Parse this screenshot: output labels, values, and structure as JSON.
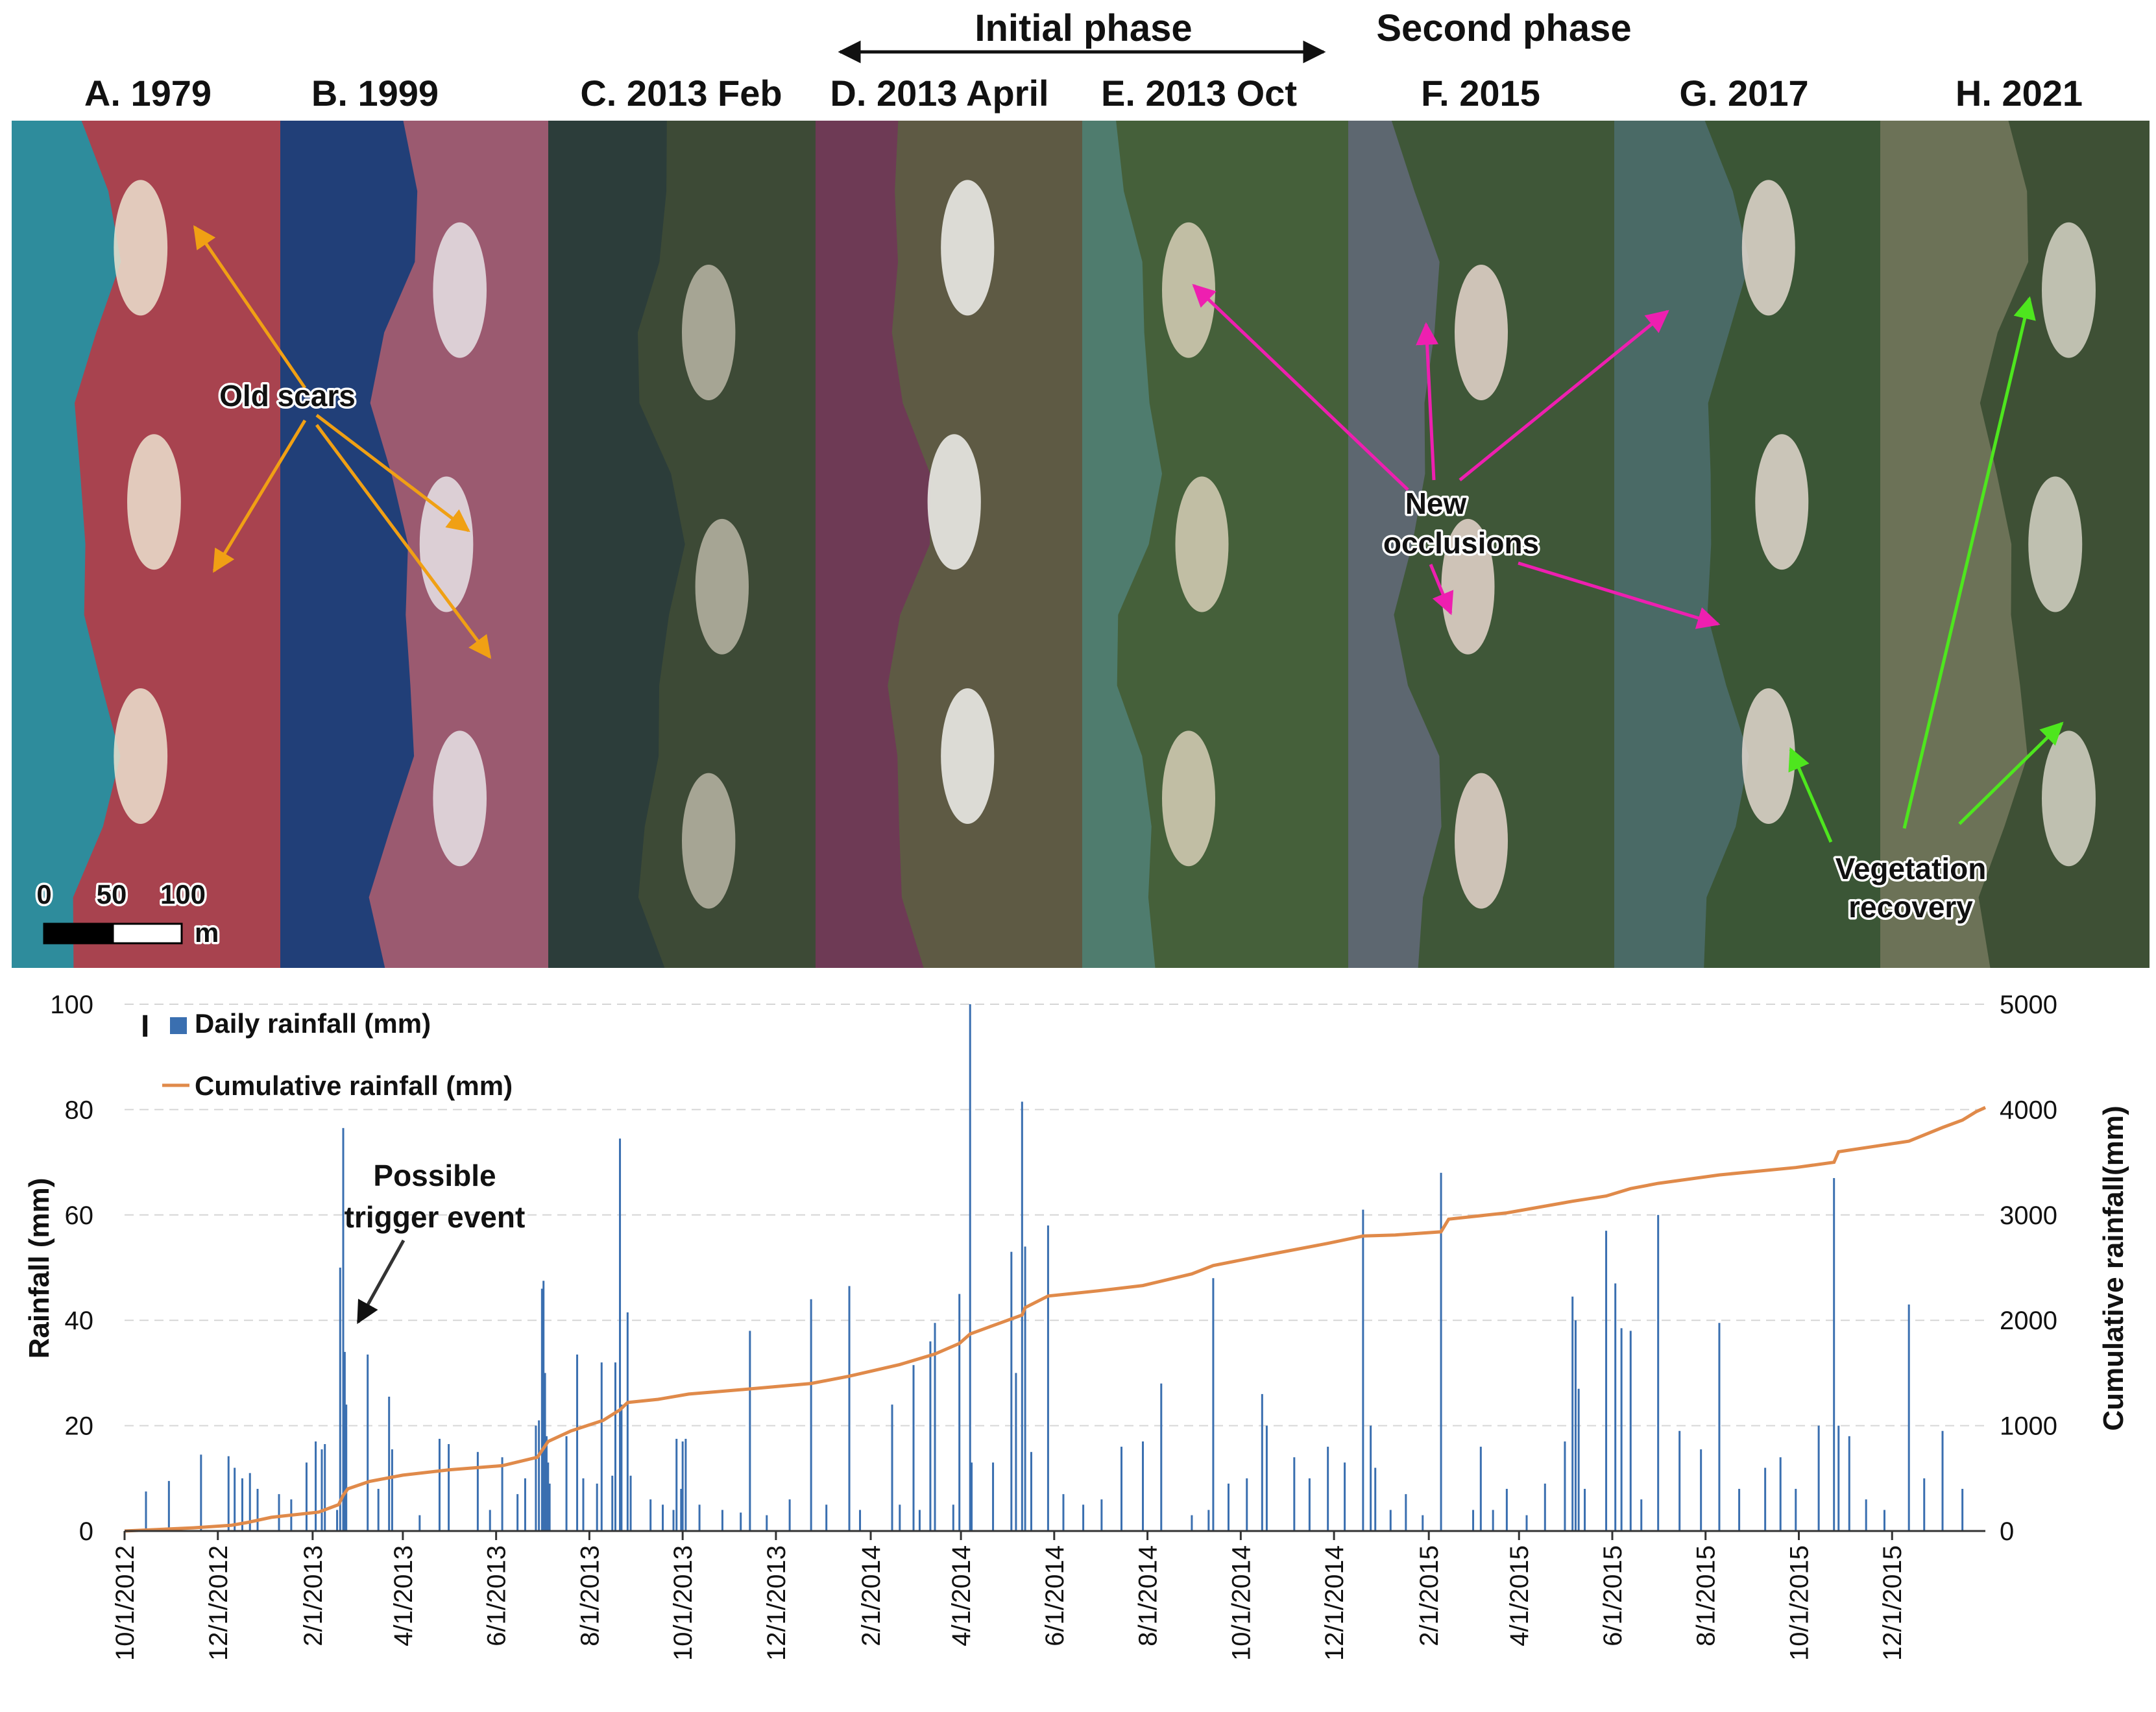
{
  "header": {
    "initial_phase": "Initial phase",
    "second_phase": "Second phase"
  },
  "panels": [
    {
      "label": "A. 1979",
      "water": "#2e8c9c",
      "land": "#a8434f",
      "scar": "#ece2cf"
    },
    {
      "label": "B. 1999",
      "water": "#213f78",
      "land": "#9b5a70",
      "scar": "#e8e4e6"
    },
    {
      "label": "C. 2013 Feb",
      "water": "#2c3d3a",
      "land": "#3d4a36",
      "scar": "#b9b5a4"
    },
    {
      "label": "D. 2013 April",
      "water": "#6e3a55",
      "land": "#5e5a44",
      "scar": "#f2f2ee"
    },
    {
      "label": "E. 2013 Oct",
      "water": "#4f7c6e",
      "land": "#45603a",
      "scar": "#d7cfb7"
    },
    {
      "label": "F. 2015",
      "water": "#5d6770",
      "land": "#3f5738",
      "scar": "#e7d6ce"
    },
    {
      "label": "G. 2017",
      "water": "#4a6a66",
      "land": "#3b5636",
      "scar": "#e4d8cf"
    },
    {
      "label": "H. 2021",
      "water": "#6c7257",
      "land": "#3e5035",
      "scar": "#d6d3c6"
    }
  ],
  "annotations": {
    "old_scars": "Old scars",
    "new_occlusions_1": "New",
    "new_occlusions_2": "occlusions",
    "vegetation_1": "Vegetation",
    "vegetation_2": "recovery",
    "trigger_1": "Possible",
    "trigger_2": "trigger event"
  },
  "scale_bar": {
    "ticks": [
      "0",
      "50",
      "100"
    ],
    "unit": "m"
  },
  "colors": {
    "old_scars_arrow": "#f0a014",
    "new_occlusions_arrow": "#ee1fb0",
    "vegetation_arrow": "#4ee61e",
    "daily_bar": "#3a6fb0",
    "cumulative_line": "#e08a4a",
    "phase_arrow": "#111111"
  },
  "chart_data": {
    "type": "bar",
    "panel_label": "I",
    "xlabel": "",
    "ylabel": "Rainfall (mm)",
    "ylabel_right": "Cumulative rainfall(mm)",
    "ylim": [
      0,
      100
    ],
    "ylim_right": [
      0,
      5000
    ],
    "yticks": [
      0,
      20,
      40,
      60,
      80,
      100
    ],
    "yticks_right": [
      0,
      1000,
      2000,
      3000,
      4000,
      5000
    ],
    "xlim": [
      "2012-10-01",
      "2016-01-31"
    ],
    "xticks": [
      "10/1/2012",
      "12/1/2012",
      "2/1/2013",
      "4/1/2013",
      "6/1/2013",
      "8/1/2013",
      "10/1/2013",
      "12/1/2013",
      "2/1/2014",
      "4/1/2014",
      "6/1/2014",
      "8/1/2014",
      "10/1/2014",
      "12/1/2014",
      "2/1/2015",
      "4/1/2015",
      "6/1/2015",
      "8/1/2015",
      "10/1/2015",
      "12/1/2015"
    ],
    "grid": true,
    "legend": "top-left",
    "series": [
      {
        "name": "Daily rainfall (mm)",
        "type": "bar",
        "points": [
          [
            "2012-10-15",
            7.5
          ],
          [
            "2012-10-30",
            9.5
          ],
          [
            "2012-11-20",
            14.5
          ],
          [
            "2012-12-08",
            14.2
          ],
          [
            "2012-12-12",
            12
          ],
          [
            "2012-12-17",
            10
          ],
          [
            "2012-12-22",
            11
          ],
          [
            "2012-12-27",
            8
          ],
          [
            "2013-01-10",
            7
          ],
          [
            "2013-01-18",
            6
          ],
          [
            "2013-01-28",
            13
          ],
          [
            "2013-02-03",
            17
          ],
          [
            "2013-02-07",
            15.5
          ],
          [
            "2013-02-09",
            16.5
          ],
          [
            "2013-02-17",
            4
          ],
          [
            "2013-02-19",
            50
          ],
          [
            "2013-02-21",
            76.5
          ],
          [
            "2013-02-22",
            34
          ],
          [
            "2013-02-23",
            24
          ],
          [
            "2013-03-09",
            33.5
          ],
          [
            "2013-03-16",
            8
          ],
          [
            "2013-03-23",
            25.5
          ],
          [
            "2013-03-25",
            15.5
          ],
          [
            "2013-04-12",
            3
          ],
          [
            "2013-04-25",
            17.5
          ],
          [
            "2013-05-01",
            16.5
          ],
          [
            "2013-05-20",
            15
          ],
          [
            "2013-05-28",
            4
          ],
          [
            "2013-06-05",
            14
          ],
          [
            "2013-06-15",
            7
          ],
          [
            "2013-06-20",
            10
          ],
          [
            "2013-06-27",
            20
          ],
          [
            "2013-06-29",
            21
          ],
          [
            "2013-07-01",
            46
          ],
          [
            "2013-07-02",
            47.5
          ],
          [
            "2013-07-03",
            30
          ],
          [
            "2013-07-04",
            18
          ],
          [
            "2013-07-05",
            13
          ],
          [
            "2013-07-06",
            9
          ],
          [
            "2013-07-17",
            18
          ],
          [
            "2013-07-24",
            33.5
          ],
          [
            "2013-07-28",
            10
          ],
          [
            "2013-08-06",
            9
          ],
          [
            "2013-08-09",
            32
          ],
          [
            "2013-08-16",
            10.5
          ],
          [
            "2013-08-18",
            32
          ],
          [
            "2013-08-21",
            74.5
          ],
          [
            "2013-08-22",
            24
          ],
          [
            "2013-08-26",
            41.5
          ],
          [
            "2013-08-28",
            10.5
          ],
          [
            "2013-09-10",
            6
          ],
          [
            "2013-09-18",
            5
          ],
          [
            "2013-09-25",
            4
          ],
          [
            "2013-09-27",
            17.5
          ],
          [
            "2013-09-30",
            8
          ],
          [
            "2013-10-01",
            17
          ],
          [
            "2013-10-03",
            17.5
          ],
          [
            "2013-10-12",
            5
          ],
          [
            "2013-10-27",
            4
          ],
          [
            "2013-11-08",
            3.5
          ],
          [
            "2013-11-14",
            38
          ],
          [
            "2013-11-25",
            3
          ],
          [
            "2013-12-10",
            6
          ],
          [
            "2013-12-24",
            44
          ],
          [
            "2014-01-03",
            5
          ],
          [
            "2014-01-18",
            46.5
          ],
          [
            "2014-01-25",
            4
          ],
          [
            "2014-02-15",
            24
          ],
          [
            "2014-02-20",
            5
          ],
          [
            "2014-03-01",
            31.5
          ],
          [
            "2014-03-05",
            4
          ],
          [
            "2014-03-12",
            36
          ],
          [
            "2014-03-15",
            39.5
          ],
          [
            "2014-03-27",
            5
          ],
          [
            "2014-03-31",
            45
          ],
          [
            "2014-04-07",
            100
          ],
          [
            "2014-04-08",
            13
          ],
          [
            "2014-04-22",
            13
          ],
          [
            "2014-05-04",
            53
          ],
          [
            "2014-05-07",
            30
          ],
          [
            "2014-05-11",
            81.5
          ],
          [
            "2014-05-13",
            54
          ],
          [
            "2014-05-17",
            15
          ],
          [
            "2014-05-28",
            58
          ],
          [
            "2014-06-07",
            7
          ],
          [
            "2014-06-20",
            5
          ],
          [
            "2014-07-02",
            6
          ],
          [
            "2014-07-15",
            16
          ],
          [
            "2014-07-29",
            17
          ],
          [
            "2014-08-10",
            28
          ],
          [
            "2014-08-30",
            3
          ],
          [
            "2014-09-10",
            4
          ],
          [
            "2014-09-13",
            48
          ],
          [
            "2014-09-23",
            9
          ],
          [
            "2014-10-05",
            10
          ],
          [
            "2014-10-15",
            26
          ],
          [
            "2014-10-18",
            20
          ],
          [
            "2014-11-05",
            14
          ],
          [
            "2014-11-15",
            10
          ],
          [
            "2014-11-27",
            16
          ],
          [
            "2014-12-08",
            13
          ],
          [
            "2014-12-20",
            61
          ],
          [
            "2014-12-25",
            20
          ],
          [
            "2014-12-28",
            12
          ],
          [
            "2015-01-07",
            4
          ],
          [
            "2015-01-17",
            7
          ],
          [
            "2015-01-28",
            3
          ],
          [
            "2015-02-09",
            68
          ],
          [
            "2015-03-02",
            4
          ],
          [
            "2015-03-07",
            16
          ],
          [
            "2015-03-15",
            4
          ],
          [
            "2015-03-24",
            8
          ],
          [
            "2015-04-06",
            3
          ],
          [
            "2015-04-18",
            9
          ],
          [
            "2015-05-01",
            17
          ],
          [
            "2015-05-06",
            44.5
          ],
          [
            "2015-05-08",
            40
          ],
          [
            "2015-05-10",
            27
          ],
          [
            "2015-05-14",
            8
          ],
          [
            "2015-05-28",
            57
          ],
          [
            "2015-06-03",
            47
          ],
          [
            "2015-06-07",
            38.5
          ],
          [
            "2015-06-13",
            38
          ],
          [
            "2015-06-20",
            6
          ],
          [
            "2015-07-01",
            60
          ],
          [
            "2015-07-15",
            19
          ],
          [
            "2015-07-29",
            15.5
          ],
          [
            "2015-08-10",
            39.5
          ],
          [
            "2015-08-23",
            8
          ],
          [
            "2015-09-09",
            12
          ],
          [
            "2015-09-19",
            14
          ],
          [
            "2015-09-29",
            8
          ],
          [
            "2015-10-14",
            20
          ],
          [
            "2015-10-24",
            67
          ],
          [
            "2015-10-27",
            20
          ],
          [
            "2015-11-03",
            18
          ],
          [
            "2015-11-14",
            6
          ],
          [
            "2015-11-26",
            4
          ],
          [
            "2015-12-12",
            43
          ],
          [
            "2015-12-22",
            10
          ],
          [
            "2016-01-03",
            19
          ],
          [
            "2016-01-16",
            8
          ]
        ]
      },
      {
        "name": "Cumulative rainfall (mm)",
        "type": "line",
        "axis": "right",
        "points": [
          [
            "2012-10-01",
            0
          ],
          [
            "2012-11-15",
            30
          ],
          [
            "2012-12-10",
            55
          ],
          [
            "2012-12-20",
            80
          ],
          [
            "2013-01-05",
            130
          ],
          [
            "2013-02-05",
            180
          ],
          [
            "2013-02-18",
            250
          ],
          [
            "2013-02-21",
            340
          ],
          [
            "2013-02-24",
            400
          ],
          [
            "2013-03-10",
            470
          ],
          [
            "2013-04-01",
            530
          ],
          [
            "2013-05-01",
            580
          ],
          [
            "2013-06-05",
            620
          ],
          [
            "2013-06-28",
            700
          ],
          [
            "2013-07-05",
            850
          ],
          [
            "2013-07-20",
            950
          ],
          [
            "2013-08-10",
            1050
          ],
          [
            "2013-08-21",
            1150
          ],
          [
            "2013-08-26",
            1220
          ],
          [
            "2013-09-15",
            1250
          ],
          [
            "2013-10-05",
            1300
          ],
          [
            "2013-11-15",
            1350
          ],
          [
            "2013-12-24",
            1400
          ],
          [
            "2014-01-18",
            1470
          ],
          [
            "2014-02-20",
            1580
          ],
          [
            "2014-03-15",
            1680
          ],
          [
            "2014-03-31",
            1780
          ],
          [
            "2014-04-07",
            1870
          ],
          [
            "2014-04-22",
            1950
          ],
          [
            "2014-05-11",
            2050
          ],
          [
            "2014-05-13",
            2120
          ],
          [
            "2014-05-28",
            2230
          ],
          [
            "2014-06-30",
            2280
          ],
          [
            "2014-07-29",
            2330
          ],
          [
            "2014-08-30",
            2440
          ],
          [
            "2014-09-13",
            2520
          ],
          [
            "2014-10-18",
            2620
          ],
          [
            "2014-11-27",
            2730
          ],
          [
            "2014-12-20",
            2800
          ],
          [
            "2015-01-10",
            2810
          ],
          [
            "2015-02-09",
            2840
          ],
          [
            "2015-02-14",
            2960
          ],
          [
            "2015-03-24",
            3020
          ],
          [
            "2015-05-06",
            3130
          ],
          [
            "2015-05-28",
            3180
          ],
          [
            "2015-06-13",
            3250
          ],
          [
            "2015-07-01",
            3300
          ],
          [
            "2015-08-10",
            3380
          ],
          [
            "2015-09-29",
            3450
          ],
          [
            "2015-10-24",
            3500
          ],
          [
            "2015-10-27",
            3600
          ],
          [
            "2015-12-12",
            3700
          ],
          [
            "2016-01-03",
            3830
          ],
          [
            "2016-01-16",
            3900
          ],
          [
            "2016-01-25",
            3980
          ],
          [
            "2016-01-31",
            4020
          ]
        ]
      }
    ],
    "annotation": "Possible trigger event"
  }
}
